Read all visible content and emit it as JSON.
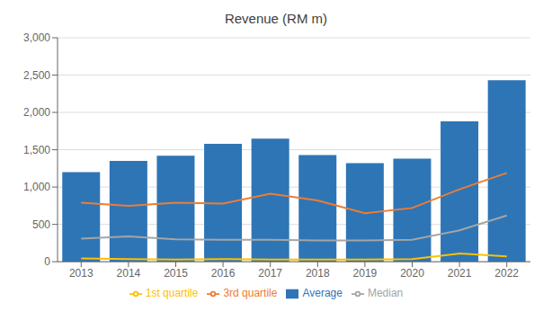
{
  "chart_data": {
    "type": "bar",
    "title": "Revenue (RM m)",
    "categories": [
      "2013",
      "2014",
      "2015",
      "2016",
      "2017",
      "2018",
      "2019",
      "2020",
      "2021",
      "2022"
    ],
    "series": [
      {
        "name": "Average",
        "type": "bar",
        "color": "#2E75B6",
        "values": [
          1200,
          1350,
          1420,
          1580,
          1650,
          1430,
          1320,
          1380,
          1880,
          2430
        ]
      },
      {
        "name": "3rd quartile",
        "type": "line",
        "color": "#ED7D31",
        "values": [
          790,
          750,
          790,
          780,
          910,
          820,
          650,
          720,
          970,
          1190
        ]
      },
      {
        "name": "Median",
        "type": "line",
        "color": "#A5A5A5",
        "values": [
          310,
          340,
          300,
          295,
          295,
          285,
          285,
          295,
          420,
          620
        ]
      },
      {
        "name": "1st quartile",
        "type": "line",
        "color": "#FFC000",
        "values": [
          45,
          35,
          30,
          35,
          30,
          30,
          30,
          35,
          110,
          70
        ]
      }
    ],
    "ylim": [
      0,
      3000
    ],
    "yticks": [
      0,
      500,
      {
        "value": 1000,
        "label": "1,000"
      },
      {
        "value": 1500,
        "label": "1,500"
      },
      {
        "value": 2000,
        "label": "2,000"
      },
      {
        "value": 2500,
        "label": "2,500"
      },
      {
        "value": 3000,
        "label": "3,000"
      }
    ],
    "grid": true,
    "legend": "bottom"
  }
}
